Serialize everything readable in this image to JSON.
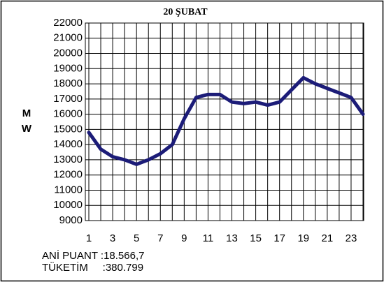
{
  "chart_data": {
    "type": "line",
    "title": "20 ŞUBAT",
    "ylabel": "M W",
    "categories": [
      "1",
      null,
      "3",
      null,
      "5",
      null,
      "7",
      null,
      "9",
      null,
      "11",
      null,
      "13",
      null,
      "15",
      null,
      "17",
      null,
      "19",
      null,
      "21",
      null,
      "23",
      null
    ],
    "series": [
      {
        "name": null,
        "color": "#1c1c78",
        "values": [
          14800,
          13700,
          13200,
          13000,
          12700,
          13000,
          13400,
          14000,
          15700,
          17100,
          17300,
          17300,
          16800,
          16700,
          16800,
          16600,
          16800,
          17600,
          18400,
          18000,
          17700,
          17400,
          17100,
          16000
        ]
      }
    ],
    "ylim": [
      9000,
      22000
    ],
    "yticks": [
      9000,
      10000,
      11000,
      12000,
      13000,
      14000,
      15000,
      16000,
      17000,
      18000,
      19000,
      20000,
      21000,
      22000
    ],
    "grid": true,
    "annotations": [
      "ANİ PUANT :18.566,7",
      "TÜKETİM     :380.799"
    ]
  }
}
